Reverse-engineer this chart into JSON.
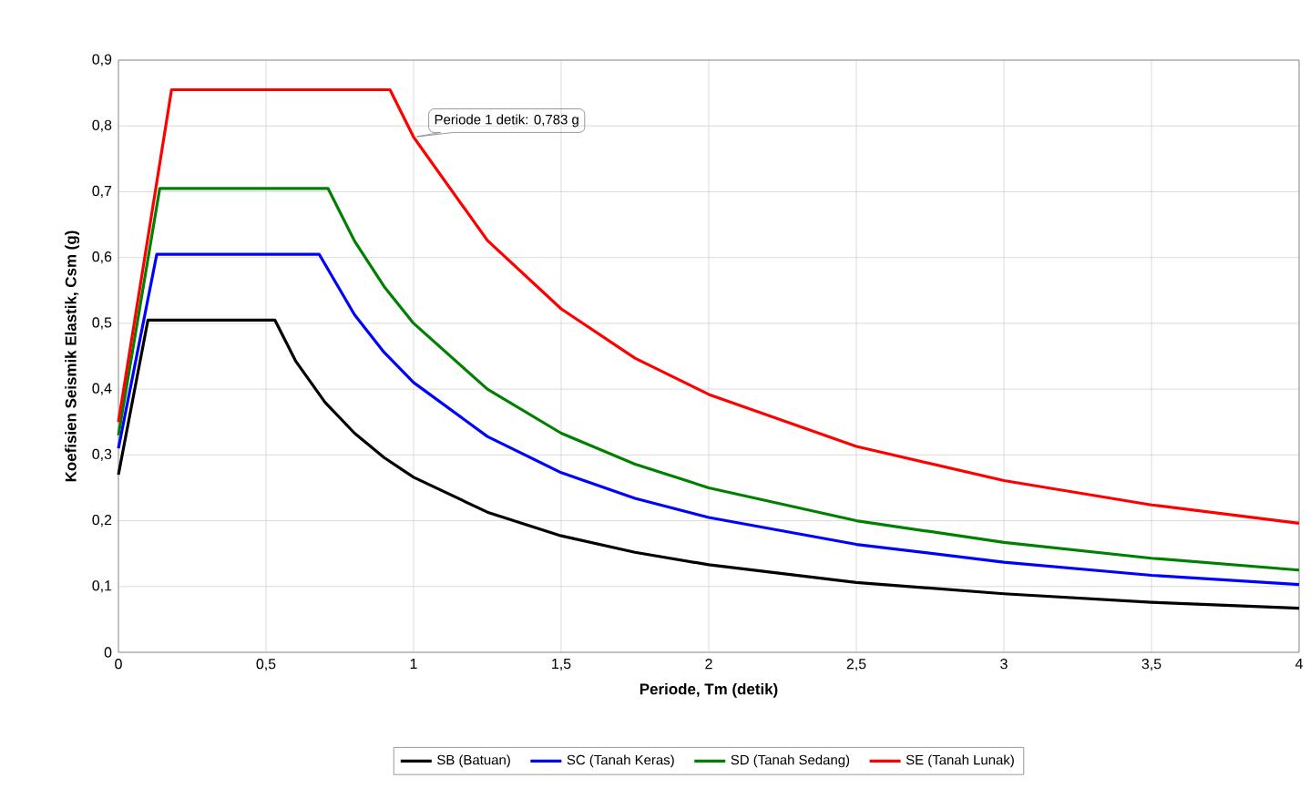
{
  "chart_data": {
    "type": "line",
    "xlabel": "Periode, Tm (detik)",
    "ylabel": "Koefisien Seismik Elastik, Csm (g)",
    "xlim": [
      0,
      4
    ],
    "ylim": [
      0,
      0.9
    ],
    "xticks": [
      0,
      {
        "value": 0.5,
        "label": "0,5"
      },
      1,
      {
        "value": 1.5,
        "label": "1,5"
      },
      2,
      {
        "value": 2.5,
        "label": "2,5"
      },
      3,
      {
        "value": 3.5,
        "label": "3,5"
      },
      4
    ],
    "yticks": [
      0,
      {
        "value": 0.1,
        "label": "0,1"
      },
      {
        "value": 0.2,
        "label": "0,2"
      },
      {
        "value": 0.3,
        "label": "0,3"
      },
      {
        "value": 0.4,
        "label": "0,4"
      },
      {
        "value": 0.5,
        "label": "0,5"
      },
      {
        "value": 0.6,
        "label": "0,6"
      },
      {
        "value": 0.7,
        "label": "0,7"
      },
      {
        "value": 0.8,
        "label": "0,8"
      },
      {
        "value": 0.9,
        "label": "0,9"
      }
    ],
    "grid": true,
    "legend": "bottom",
    "series": [
      {
        "name": "SB (Batuan)",
        "color": "#000000",
        "x": [
          0,
          0.1,
          0.53,
          0.6,
          0.7,
          0.8,
          0.9,
          1,
          1.25,
          1.5,
          1.75,
          2,
          2.5,
          3,
          3.5,
          4
        ],
        "values": [
          0.27,
          0.505,
          0.505,
          0.443,
          0.38,
          0.333,
          0.296,
          0.266,
          0.213,
          0.177,
          0.152,
          0.133,
          0.106,
          0.089,
          0.076,
          0.067
        ]
      },
      {
        "name": "SC (Tanah Keras)",
        "color": "#0000ff",
        "x": [
          0,
          0.13,
          0.68,
          0.8,
          0.9,
          1,
          1.25,
          1.5,
          1.75,
          2,
          2.5,
          3,
          3.5,
          4
        ],
        "values": [
          0.31,
          0.605,
          0.605,
          0.513,
          0.456,
          0.41,
          0.328,
          0.273,
          0.234,
          0.205,
          0.164,
          0.137,
          0.117,
          0.103
        ]
      },
      {
        "name": "SD (Tanah Sedang)",
        "color": "#008000",
        "x": [
          0,
          0.14,
          0.71,
          0.8,
          0.9,
          1,
          1.25,
          1.5,
          1.75,
          2,
          2.5,
          3,
          3.5,
          4
        ],
        "values": [
          0.33,
          0.705,
          0.705,
          0.625,
          0.556,
          0.5,
          0.4,
          0.333,
          0.286,
          0.25,
          0.2,
          0.167,
          0.143,
          0.125
        ]
      },
      {
        "name": "SE (Tanah Lunak)",
        "color": "#ff0000",
        "x": [
          0,
          0.18,
          0.92,
          1,
          1.25,
          1.5,
          1.75,
          2,
          2.5,
          3,
          3.5,
          4
        ],
        "values": [
          0.35,
          0.855,
          0.855,
          0.783,
          0.626,
          0.522,
          0.447,
          0.392,
          0.313,
          0.261,
          0.224,
          0.196
        ]
      }
    ],
    "annotations": [
      {
        "text": "Periode 1 detik: 0,783 g",
        "x": 1,
        "y": 0.783
      }
    ]
  }
}
